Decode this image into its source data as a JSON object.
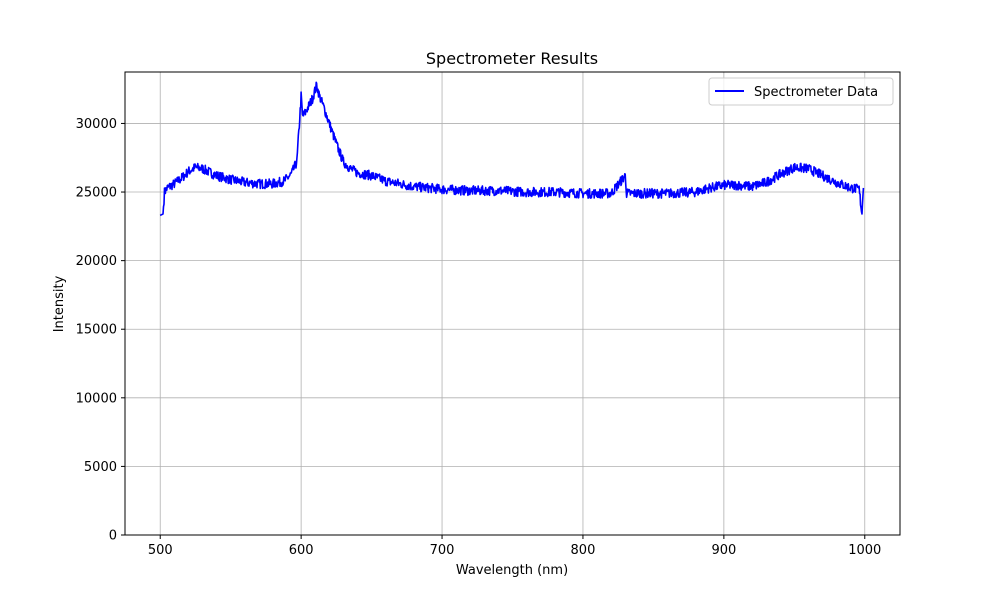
{
  "chart_data": {
    "type": "line",
    "title": "Spectrometer Results",
    "xlabel": "Wavelength (nm)",
    "ylabel": "Intensity",
    "xlim": [
      475,
      1025
    ],
    "ylim": [
      0,
      33750
    ],
    "x_ticks": [
      500,
      600,
      700,
      800,
      900,
      1000
    ],
    "x_tick_labels": [
      "500",
      "600",
      "700",
      "800",
      "900",
      "1000"
    ],
    "y_ticks": [
      0,
      5000,
      10000,
      15000,
      20000,
      25000,
      30000
    ],
    "y_tick_labels": [
      "0",
      "5000",
      "10000",
      "15000",
      "20000",
      "25000",
      "30000"
    ],
    "grid": true,
    "legend": {
      "position": "upper right",
      "entries": [
        "Spectrometer Data"
      ]
    },
    "series": [
      {
        "name": "Spectrometer Data",
        "color": "#0000ff",
        "x": [
          500,
          502,
          503,
          505,
          510,
          515,
          520,
          525,
          530,
          540,
          550,
          560,
          570,
          580,
          588,
          593,
          597,
          600,
          601,
          603,
          605,
          608,
          611,
          613,
          616,
          620,
          625,
          630,
          635,
          640,
          650,
          660,
          670,
          680,
          690,
          700,
          720,
          740,
          760,
          780,
          800,
          820,
          830,
          831,
          840,
          860,
          880,
          890,
          900,
          910,
          920,
          930,
          940,
          950,
          960,
          970,
          980,
          990,
          996,
          998,
          999
        ],
        "y": [
          23300,
          23400,
          25000,
          25300,
          25600,
          26000,
          26500,
          26800,
          26700,
          26200,
          25900,
          25700,
          25600,
          25600,
          25800,
          26300,
          27200,
          32000,
          30500,
          30800,
          31200,
          31800,
          32800,
          32000,
          31200,
          30000,
          28500,
          27200,
          26700,
          26400,
          26200,
          25800,
          25600,
          25400,
          25300,
          25200,
          25100,
          25100,
          25000,
          25000,
          24900,
          24900,
          26200,
          24900,
          24900,
          24900,
          25000,
          25300,
          25500,
          25500,
          25400,
          25700,
          26300,
          26800,
          26700,
          26200,
          25700,
          25300,
          25200,
          23400,
          25300
        ]
      }
    ]
  }
}
